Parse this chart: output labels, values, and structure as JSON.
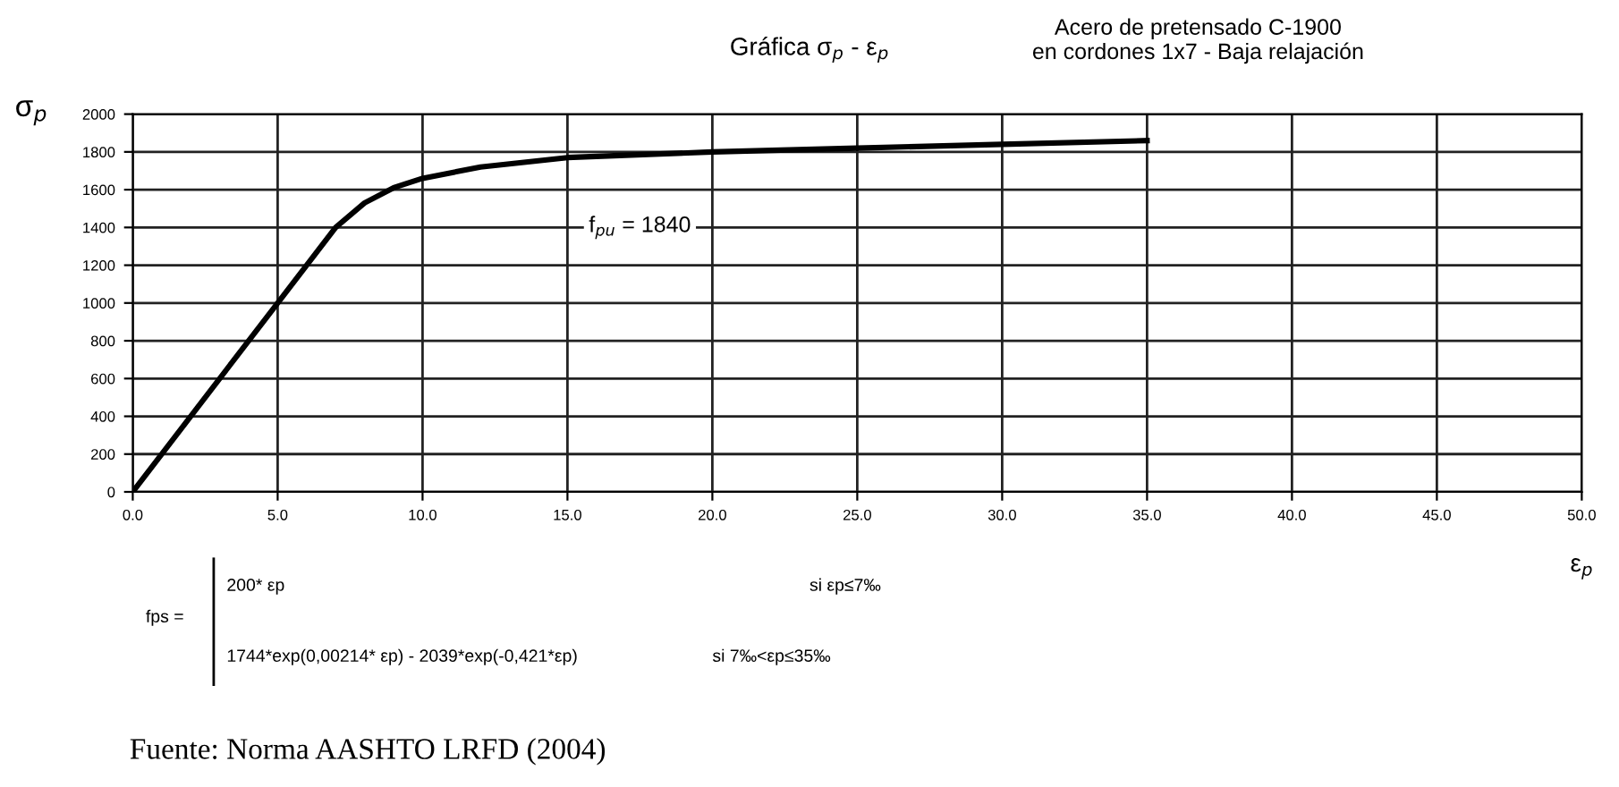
{
  "chart_data": {
    "type": "line",
    "title": "Gráfica σ$_{p}$ - ε$_{p}$",
    "subtitle": "Acero de pretensado C-1900\nen cordones 1x7 - Baja relajación",
    "xlabel": "ε$_{p}$",
    "ylabel": "σ$_{p}$",
    "x": [
      0,
      5,
      7,
      8,
      9,
      10,
      12,
      15,
      20,
      25,
      30,
      35
    ],
    "series": [
      {
        "color": "#000000",
        "values": [
          0,
          1000,
          1400,
          1530,
          1610,
          1660,
          1720,
          1770,
          1800,
          1820,
          1840,
          1860
        ]
      }
    ],
    "xlim": [
      0,
      50
    ],
    "xticks": [
      {
        "value": 0,
        "label": "0.0"
      },
      {
        "value": 5,
        "label": "5.0"
      },
      {
        "value": 10,
        "label": "10.0"
      },
      {
        "value": 15,
        "label": "15.0"
      },
      {
        "value": 20,
        "label": "20.0"
      },
      {
        "value": 25,
        "label": "25.0"
      },
      {
        "value": 30,
        "label": "30.0"
      },
      {
        "value": 35,
        "label": "35.0"
      },
      {
        "value": 40,
        "label": "40.0"
      },
      {
        "value": 45,
        "label": "45.0"
      },
      {
        "value": 50,
        "label": "50.0"
      }
    ],
    "ylim": [
      0,
      2000
    ],
    "yticks": [
      0,
      200,
      400,
      600,
      800,
      1000,
      1200,
      1400,
      1600,
      1800,
      2000
    ],
    "grid": true,
    "marker": "none",
    "line_style": "solid",
    "legend": false,
    "annotations": [
      "f$_{pu}$ = 1840",
      "fps =",
      "200* εp",
      "si εp≤7‰",
      "1744*exp(0,00214* εp) - 2039*exp(-0,421*εp)",
      "si 7‰<εp≤35‰",
      "Fuente: Norma AASHTO LRFD (2004)"
    ]
  }
}
